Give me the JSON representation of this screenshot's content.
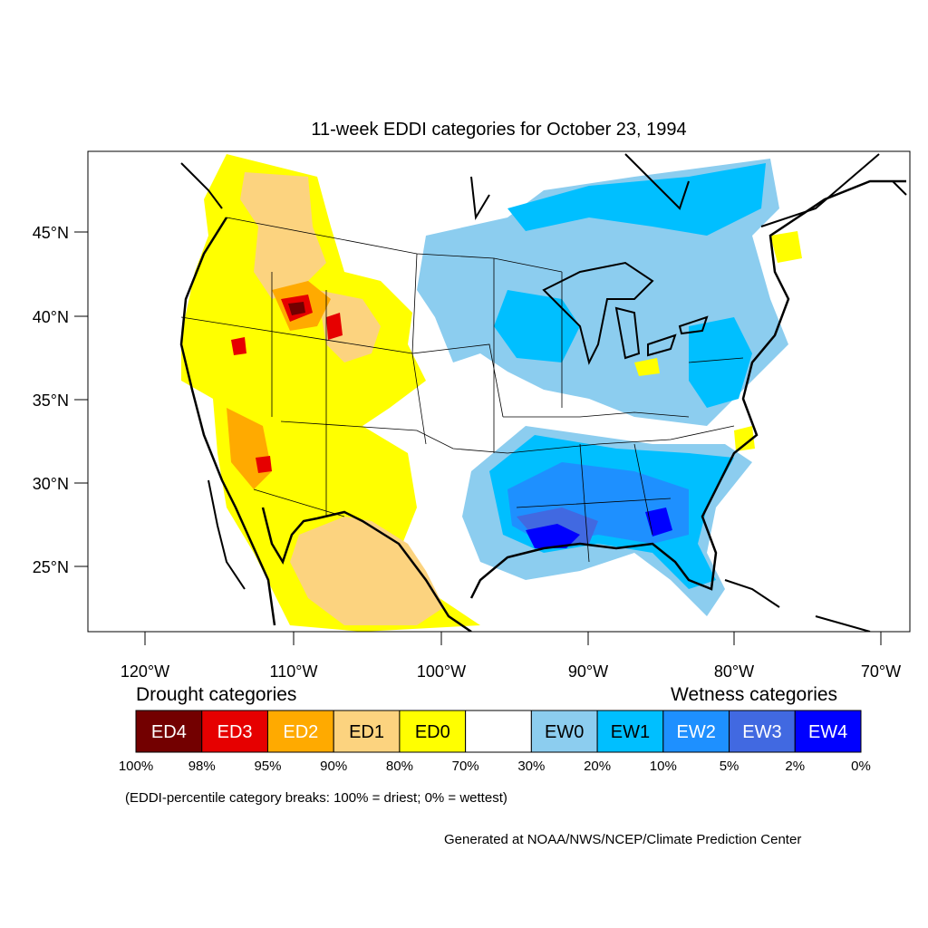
{
  "title": "11-week EDDI categories for October 23, 1994",
  "lat_labels": [
    "45°N",
    "40°N",
    "35°N",
    "30°N",
    "25°N"
  ],
  "lon_labels": [
    "120°W",
    "110°W",
    "100°W",
    "90°W",
    "80°W",
    "70°W"
  ],
  "legend": {
    "drought_title": "Drought categories",
    "wetness_title": "Wetness categories",
    "boxes": [
      {
        "label": "ED4",
        "color": "#730000",
        "text_color": "#ffffff"
      },
      {
        "label": "ED3",
        "color": "#e60000",
        "text_color": "#ffffff"
      },
      {
        "label": "ED2",
        "color": "#ffaa00",
        "text_color": "#ffffff"
      },
      {
        "label": "ED1",
        "color": "#fcd37f",
        "text_color": "#000000"
      },
      {
        "label": "ED0",
        "color": "#ffff00",
        "text_color": "#000000"
      },
      {
        "label": "",
        "color": "#ffffff",
        "text_color": "#000000"
      },
      {
        "label": "EW0",
        "color": "#8ccdef",
        "text_color": "#000000"
      },
      {
        "label": "EW1",
        "color": "#00bfff",
        "text_color": "#000000"
      },
      {
        "label": "EW2",
        "color": "#1e90ff",
        "text_color": "#ffffff"
      },
      {
        "label": "EW3",
        "color": "#4169e1",
        "text_color": "#ffffff"
      },
      {
        "label": "EW4",
        "color": "#0000ff",
        "text_color": "#ffffff"
      }
    ],
    "breaks": [
      "100%",
      "98%",
      "95%",
      "90%",
      "80%",
      "70%",
      "30%",
      "20%",
      "10%",
      "5%",
      "2%",
      "0%"
    ]
  },
  "note": "(EDDI-percentile category breaks: 100% = driest; 0% = wettest)",
  "credit": "Generated at NOAA/NWS/NCEP/Climate Prediction Center"
}
